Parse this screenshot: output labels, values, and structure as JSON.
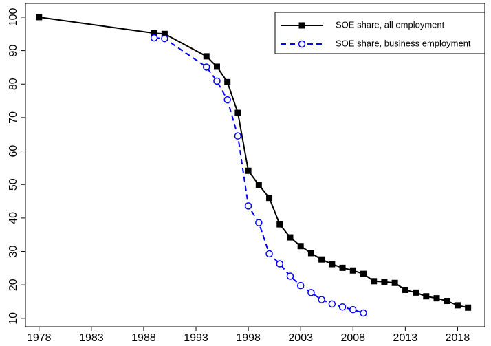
{
  "chart_data": {
    "type": "line",
    "xlim": [
      1976.7,
      2020.6
    ],
    "ylim": [
      7.5,
      104.1
    ],
    "xticks": [
      1978,
      1983,
      1988,
      1993,
      1998,
      2003,
      2008,
      2013,
      2018
    ],
    "yticks": [
      10,
      20,
      30,
      40,
      50,
      60,
      70,
      80,
      90,
      100
    ],
    "legend": "upper right",
    "series": [
      {
        "name": "SOE share, all employment",
        "color": "#000000",
        "linestyle": "solid",
        "marker": "square",
        "x": [
          1978,
          1989,
          1990,
          1994,
          1995,
          1996,
          1997,
          1998,
          1999,
          2000,
          2001,
          2002,
          2003,
          2004,
          2005,
          2006,
          2007,
          2008,
          2009,
          2010,
          2011,
          2012,
          2013,
          2014,
          2015,
          2016,
          2017,
          2018,
          2019
        ],
        "values": [
          100,
          95.2,
          95,
          88.3,
          85.2,
          80.6,
          71.4,
          54.1,
          49.9,
          46,
          38.1,
          34.2,
          31.6,
          29.5,
          27.6,
          26.2,
          25.1,
          24.3,
          23.3,
          21.1,
          20.9,
          20.6,
          18.5,
          17.7,
          16.6,
          16.0,
          15.2,
          13.9,
          13.2
        ]
      },
      {
        "name": "SOE share, business employment",
        "color": "#0000ff",
        "linestyle": "dashed",
        "marker": "circle",
        "x": [
          1989,
          1990,
          1994,
          1995,
          1996,
          1997,
          1998,
          1999,
          2000,
          2001,
          2002,
          2003,
          2004,
          2005,
          2006,
          2007,
          2008,
          2009
        ],
        "values": [
          93.8,
          93.6,
          85.1,
          80.9,
          75.3,
          64.5,
          43.6,
          38.6,
          29.3,
          26.3,
          22.6,
          19.8,
          17.7,
          15.6,
          14.3,
          13.4,
          12.6,
          11.6
        ]
      }
    ]
  }
}
